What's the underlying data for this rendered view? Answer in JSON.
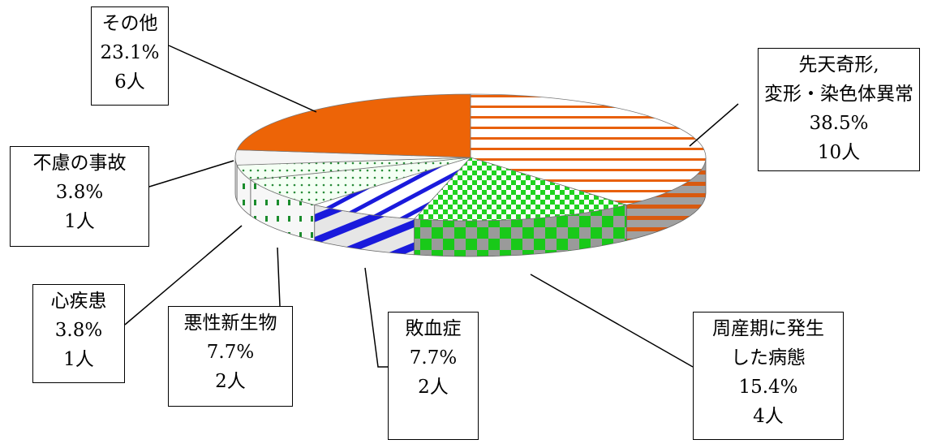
{
  "chart_data": {
    "type": "pie",
    "slices": [
      {
        "label_lines": [
          "先天奇形,",
          "変形・染色体異常"
        ],
        "percent": "38.5%",
        "count": "10人",
        "value": 10,
        "color": "#e8600b",
        "pattern": "hstripes"
      },
      {
        "label_lines": [
          "周産期に発生",
          "した病態"
        ],
        "percent": "15.4%",
        "count": "4人",
        "value": 4,
        "color": "#1fd31f",
        "pattern": "checker"
      },
      {
        "label_lines": [
          "敗血症"
        ],
        "percent": "7.7%",
        "count": "2人",
        "value": 2,
        "color": "#1a1adc",
        "pattern": "diagstripes"
      },
      {
        "label_lines": [
          "悪性新生物"
        ],
        "percent": "7.7%",
        "count": "2人",
        "value": 2,
        "color": "#1a8c2c",
        "pattern": "dots"
      },
      {
        "label_lines": [
          "心疾患"
        ],
        "percent": "3.8%",
        "count": "1人",
        "value": 1,
        "color": "#4a9a4a",
        "pattern": "smalldots"
      },
      {
        "label_lines": [
          "不慮の事故"
        ],
        "percent": "3.8%",
        "count": "1人",
        "value": 1,
        "color": "#d8d8d8",
        "pattern": "light"
      },
      {
        "label_lines": [
          "その他"
        ],
        "percent": "23.1%",
        "count": "6人",
        "value": 6,
        "color": "#ed6407",
        "pattern": "solid"
      }
    ]
  }
}
